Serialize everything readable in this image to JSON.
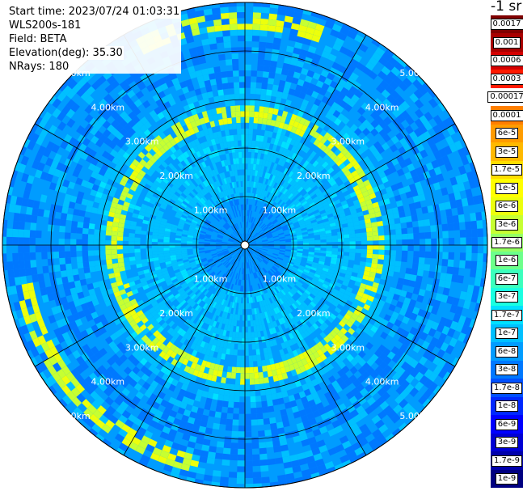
{
  "header": {
    "start_time": "Start time: 2023/07/24 01:03:31",
    "instrument": "WLS200s-181",
    "field": "Field: BETA",
    "elevation": "Elevation(deg): 35.30",
    "nrays": "NRays: 180"
  },
  "colorbar": {
    "units": "-1 sr",
    "labels": [
      "0.0017",
      "0.001",
      "0.0006",
      "0.0003",
      "0.00017",
      "0.0001",
      "6e-5",
      "3e-5",
      "1.7e-5",
      "1e-5",
      "6e-6",
      "3e-6",
      "1.7e-6",
      "1e-6",
      "6e-7",
      "3e-7",
      "1.7e-7",
      "1e-7",
      "6e-8",
      "3e-8",
      "1.7e-8",
      "1e-8",
      "6e-9",
      "3e-9",
      "1.7e-9",
      "1e-9"
    ],
    "colors": [
      "#800000",
      "#a80000",
      "#d40000",
      "#ff1a00",
      "#ffffff",
      "#ff7f00",
      "#ff9c00",
      "#ffb900",
      "#ffdd00",
      "#ffff00",
      "#ecff0c",
      "#c6ff32",
      "#95ff63",
      "#6dff8b",
      "#3bffbd",
      "#19ffe1",
      "#00e1ff",
      "#00c0ff",
      "#009cff",
      "#0078ff",
      "#0050ff",
      "#0028ff",
      "#0000ff",
      "#0000d4",
      "#0000aa",
      "#000080"
    ]
  },
  "chart_data": {
    "type": "heatmap",
    "projection": "polar",
    "title": "",
    "quantity": "Field: BETA",
    "units": "-1 sr",
    "scale": "log",
    "color_range": [
      1e-09,
      0.0017
    ],
    "nrays": 180,
    "elevation_deg": 35.3,
    "range_max_km": 5.0,
    "range_rings_km": [
      1.0,
      2.0,
      3.0,
      4.0,
      5.0
    ],
    "ring_labels": [
      "1.00km",
      "2.00km",
      "3.00km",
      "4.00km",
      "5.00km"
    ],
    "spoke_interval_deg": 30,
    "background_level": "1e-8",
    "features": [
      {
        "description": "high backscatter ring",
        "range_km": 2.7,
        "level": "1.7e-6"
      },
      {
        "description": "high backscatter arc",
        "range_km": 4.6,
        "level": "6e-6"
      }
    ]
  }
}
